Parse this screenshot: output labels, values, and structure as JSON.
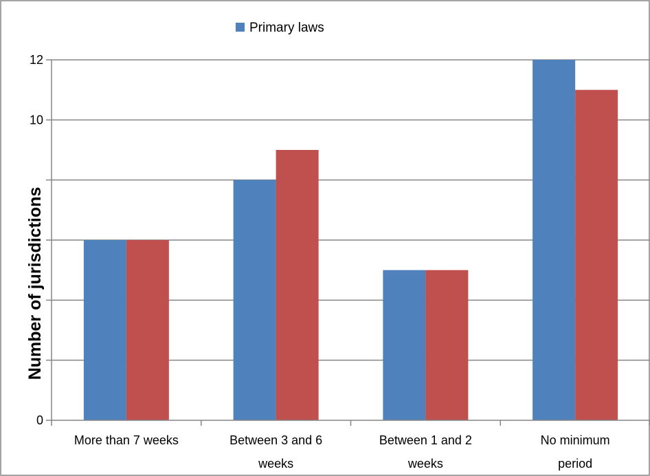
{
  "chart_data": {
    "type": "bar",
    "categories": [
      [
        "More than 7 weeks"
      ],
      [
        "Between 3 and 6",
        "weeks"
      ],
      [
        "Between 1 and 2",
        "weeks"
      ],
      [
        "No minimum",
        "period"
      ]
    ],
    "series": [
      {
        "name": "Primary laws",
        "color": "#4f81bd",
        "values": [
          6,
          8,
          5,
          12
        ]
      },
      {
        "name": "",
        "color": "#c0504d",
        "values": [
          6,
          9,
          5,
          11
        ]
      }
    ],
    "ylabel": "Number of jurisdictions",
    "ylim": [
      0,
      12
    ],
    "y_ticks": [
      {
        "value": 0,
        "label": "0"
      },
      {
        "value": 2,
        "label": ""
      },
      {
        "value": 4,
        "label": ""
      },
      {
        "value": 6,
        "label": ""
      },
      {
        "value": 8,
        "label": ""
      },
      {
        "value": 10,
        "label": "10"
      },
      {
        "value": 12,
        "label": "12"
      }
    ],
    "grid": true,
    "legend_position": "top"
  }
}
